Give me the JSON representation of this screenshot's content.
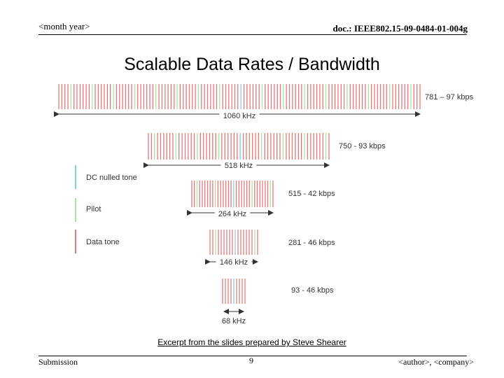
{
  "header": {
    "left": "<month year>",
    "right": "doc.: IEEE802.15-09-0484-01-004g"
  },
  "title": "Scalable Data Rates / Bandwidth",
  "chart_data": {
    "type": "diagram",
    "bands": [
      {
        "rate": "781 – 97 kbps",
        "bandwidth": "1060 kHz",
        "tones": 120
      },
      {
        "rate": "750 - 93 kbps",
        "bandwidth": "518 kHz",
        "tones": 60
      },
      {
        "rate": "515 - 42 kbps",
        "bandwidth": "264 kHz",
        "tones": 32
      },
      {
        "rate": "281 - 46 kbps",
        "bandwidth": "146 kHz",
        "tones": 18
      },
      {
        "rate": "93 - 46 kbps",
        "bandwidth": "68 kHz",
        "tones": 9
      }
    ],
    "legend": [
      {
        "label": "DC nulled tone",
        "color": "#7fd4d4"
      },
      {
        "label": "Pilot",
        "color": "#a8e6a0"
      },
      {
        "label": "Data tone",
        "color": "#e87878"
      }
    ]
  },
  "caption": "Excerpt from the slides prepared by Steve Shearer",
  "footer": {
    "left": "Submission",
    "center": "9",
    "right": "<author>, <company>"
  }
}
